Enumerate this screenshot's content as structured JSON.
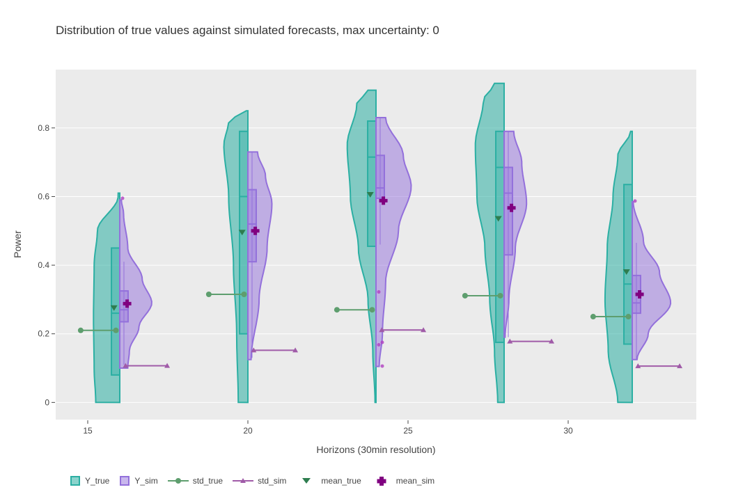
{
  "chart_data": {
    "type": "violin",
    "title": "Distribution of true values against simulated forecasts, max uncertainty: 0",
    "xlabel": "Horizons (30min resolution)",
    "ylabel": "Power",
    "xlim": [
      14,
      34
    ],
    "ylim": [
      -0.05,
      0.97
    ],
    "xticks": [
      15,
      20,
      25,
      30
    ],
    "yticks": [
      0,
      0.2,
      0.4,
      0.6,
      0.8
    ],
    "ytick_labels": [
      "0",
      "0.2",
      "0.4",
      "0.6",
      "0.8"
    ],
    "xtick_labels": [
      "15",
      "20",
      "25",
      "30"
    ],
    "colors": {
      "y_true": "#2bafa3",
      "y_sim": "#9370db",
      "std_true": "#5e9e6e",
      "std_sim": "#a05ba8",
      "mean_true": "#2e7d4f",
      "mean_sim": "#800080",
      "plot_bg": "#ebebeb"
    },
    "groups": [
      {
        "horizon": 16,
        "true": {
          "violin_range": [
            0,
            0.61
          ],
          "width_profile": [
            [
              0,
              0.75
            ],
            [
              0.1,
              0.8
            ],
            [
              0.25,
              0.82
            ],
            [
              0.4,
              0.8
            ],
            [
              0.5,
              0.7
            ],
            [
              0.6,
              0.05
            ]
          ],
          "box": {
            "q1": 0.08,
            "median": 0.26,
            "q3": 0.45,
            "whisker_low": 0.0,
            "whisker_high": 0.61
          },
          "mean": 0.275,
          "std": 0.21
        },
        "sim": {
          "violin_range": [
            0.1,
            0.59
          ],
          "width_profile": [
            [
              0.1,
              0.25
            ],
            [
              0.15,
              0.3
            ],
            [
              0.22,
              0.6
            ],
            [
              0.29,
              1.0
            ],
            [
              0.36,
              0.7
            ],
            [
              0.45,
              0.25
            ],
            [
              0.55,
              0.12
            ],
            [
              0.59,
              0.05
            ]
          ],
          "box": {
            "q1": 0.235,
            "median": 0.27,
            "q3": 0.325,
            "whisker_low": 0.11,
            "whisker_high": 0.41
          },
          "outliers": [
            0.595
          ],
          "mean": 0.288,
          "std": 0.107
        }
      },
      {
        "horizon": 20,
        "true": {
          "violin_range": [
            0,
            0.85
          ],
          "width_profile": [
            [
              0,
              0.3
            ],
            [
              0.2,
              0.35
            ],
            [
              0.4,
              0.45
            ],
            [
              0.6,
              0.6
            ],
            [
              0.75,
              0.75
            ],
            [
              0.82,
              0.6
            ],
            [
              0.85,
              0.05
            ]
          ],
          "box": {
            "q1": 0.2,
            "median": 0.6,
            "q3": 0.79,
            "whisker_low": 0.0,
            "whisker_high": 0.85
          },
          "mean": 0.495,
          "std": 0.315
        },
        "sim": {
          "violin_range": [
            0.125,
            0.73
          ],
          "width_profile": [
            [
              0.125,
              0.1
            ],
            [
              0.3,
              0.35
            ],
            [
              0.45,
              0.6
            ],
            [
              0.58,
              0.75
            ],
            [
              0.66,
              0.55
            ],
            [
              0.73,
              0.3
            ]
          ],
          "box": {
            "q1": 0.41,
            "median": 0.52,
            "q3": 0.62,
            "whisker_low": 0.13,
            "whisker_high": 0.73
          },
          "mean": 0.5,
          "std": 0.152
        }
      },
      {
        "horizon": 24,
        "true": {
          "violin_range": [
            0,
            0.91
          ],
          "width_profile": [
            [
              0,
              0.03
            ],
            [
              0.15,
              0.1
            ],
            [
              0.3,
              0.25
            ],
            [
              0.45,
              0.55
            ],
            [
              0.6,
              0.8
            ],
            [
              0.75,
              0.9
            ],
            [
              0.87,
              0.6
            ],
            [
              0.91,
              0.25
            ]
          ],
          "box": {
            "q1": 0.455,
            "median": 0.715,
            "q3": 0.82,
            "whisker_low": 0.0,
            "whisker_high": 0.91
          },
          "mean": 0.605,
          "std": 0.27
        },
        "sim": {
          "violin_range": [
            0.105,
            0.83
          ],
          "width_profile": [
            [
              0.105,
              0.1
            ],
            [
              0.2,
              0.2
            ],
            [
              0.35,
              0.3
            ],
            [
              0.5,
              0.7
            ],
            [
              0.63,
              1.1
            ],
            [
              0.72,
              0.85
            ],
            [
              0.83,
              0.3
            ]
          ],
          "box": {
            "q1": 0.595,
            "median": 0.625,
            "q3": 0.72,
            "whisker_low": 0.46,
            "whisker_high": 0.83
          },
          "outliers": [
            0.322,
            0.175,
            0.168,
            0.106
          ],
          "mean": 0.588,
          "std": 0.211
        }
      },
      {
        "horizon": 28,
        "true": {
          "violin_range": [
            0,
            0.93
          ],
          "width_profile": [
            [
              0,
              0.2
            ],
            [
              0.15,
              0.3
            ],
            [
              0.3,
              0.45
            ],
            [
              0.45,
              0.6
            ],
            [
              0.6,
              0.85
            ],
            [
              0.75,
              0.9
            ],
            [
              0.88,
              0.65
            ],
            [
              0.93,
              0.3
            ]
          ],
          "box": {
            "q1": 0.175,
            "median": 0.685,
            "q3": 0.79,
            "whisker_low": 0.0,
            "whisker_high": 0.93
          },
          "mean": 0.535,
          "std": 0.311
        },
        "sim": {
          "violin_range": [
            0.19,
            0.79
          ],
          "width_profile": [
            [
              0.19,
              0.03
            ],
            [
              0.3,
              0.15
            ],
            [
              0.45,
              0.35
            ],
            [
              0.58,
              0.7
            ],
            [
              0.7,
              0.55
            ],
            [
              0.79,
              0.3
            ]
          ],
          "box": {
            "q1": 0.43,
            "median": 0.61,
            "q3": 0.685,
            "whisker_low": 0.19,
            "whisker_high": 0.79
          },
          "mean": 0.567,
          "std": 0.178
        }
      },
      {
        "horizon": 32,
        "true": {
          "violin_range": [
            0,
            0.79
          ],
          "width_profile": [
            [
              0,
              0.45
            ],
            [
              0.15,
              0.75
            ],
            [
              0.3,
              0.85
            ],
            [
              0.45,
              0.78
            ],
            [
              0.6,
              0.6
            ],
            [
              0.72,
              0.45
            ],
            [
              0.79,
              0.05
            ]
          ],
          "box": {
            "q1": 0.17,
            "median": 0.345,
            "q3": 0.635,
            "whisker_low": 0.0,
            "whisker_high": 0.79
          },
          "mean": 0.38,
          "std": 0.25
        },
        "sim": {
          "violin_range": [
            0.125,
            0.585
          ],
          "width_profile": [
            [
              0.125,
              0.15
            ],
            [
              0.2,
              0.5
            ],
            [
              0.29,
              1.2
            ],
            [
              0.38,
              0.85
            ],
            [
              0.47,
              0.35
            ],
            [
              0.585,
              0.03
            ]
          ],
          "box": {
            "q1": 0.26,
            "median": 0.29,
            "q3": 0.37,
            "whisker_low": 0.125,
            "whisker_high": 0.465
          },
          "outliers": [
            0.587
          ],
          "mean": 0.315,
          "std": 0.106
        }
      }
    ],
    "legend": {
      "position": "bottom-left",
      "entries": [
        "Y_true",
        "Y_sim",
        "std_true",
        "std_sim",
        "mean_true",
        "mean_sim"
      ]
    }
  }
}
